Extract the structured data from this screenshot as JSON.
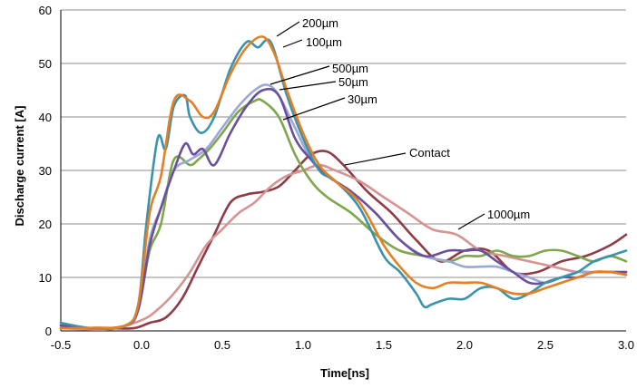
{
  "chart_data": {
    "type": "line",
    "title": "",
    "xlabel": "Time[ns]",
    "ylabel": "Discharge current [A]",
    "xlim": [
      -0.5,
      3.0
    ],
    "ylim": [
      0,
      60
    ],
    "x_ticks": [
      "-0.5",
      "0.0",
      "0.5",
      "1.0",
      "1.5",
      "2.0",
      "2.5",
      "3.0"
    ],
    "y_ticks": [
      "0",
      "10",
      "20",
      "30",
      "40",
      "50",
      "60"
    ],
    "grid": "horizontal",
    "legend": "none",
    "series": [
      {
        "name": "200µm",
        "color": "#e67e22",
        "x": [
          -0.5,
          -0.3,
          -0.1,
          -0.02,
          0.05,
          0.12,
          0.2,
          0.3,
          0.38,
          0.45,
          0.55,
          0.65,
          0.75,
          0.82,
          0.9,
          1.0,
          1.1,
          1.2,
          1.35,
          1.5,
          1.6,
          1.7,
          1.8,
          1.9,
          2.0,
          2.1,
          2.2,
          2.3,
          2.4,
          2.5,
          2.6,
          2.7,
          2.8,
          2.9,
          3.0
        ],
        "y": [
          0.5,
          0.6,
          1.0,
          5,
          22,
          29,
          43,
          43,
          40,
          41,
          48,
          53,
          55,
          52,
          45,
          37,
          31,
          28,
          24,
          16,
          12,
          9,
          8,
          9,
          9,
          9,
          8,
          7,
          7,
          8,
          9,
          10,
          11,
          11,
          10.5
        ]
      },
      {
        "name": "100µm",
        "color": "#3a93ad",
        "x": [
          -0.5,
          -0.3,
          -0.1,
          -0.02,
          0.03,
          0.1,
          0.15,
          0.2,
          0.27,
          0.3,
          0.37,
          0.45,
          0.55,
          0.65,
          0.72,
          0.8,
          0.9,
          1.0,
          1.1,
          1.2,
          1.35,
          1.5,
          1.6,
          1.7,
          1.75,
          1.8,
          1.9,
          2.0,
          2.1,
          2.2,
          2.3,
          2.4,
          2.5,
          2.6,
          2.7,
          2.8,
          2.9,
          3.0
        ],
        "y": [
          1.5,
          0.5,
          1.0,
          5,
          20,
          36,
          34,
          42,
          44,
          40,
          37,
          40,
          49,
          54,
          53,
          54,
          44,
          36,
          30,
          28,
          23,
          14,
          11,
          7,
          4.5,
          5,
          6,
          6,
          8,
          8,
          6,
          7,
          9,
          10,
          11,
          13,
          14,
          15
        ]
      },
      {
        "name": "500µm",
        "color": "#6a4f9c",
        "x": [
          -0.5,
          -0.3,
          -0.1,
          -0.02,
          0.05,
          0.12,
          0.2,
          0.27,
          0.32,
          0.38,
          0.45,
          0.55,
          0.65,
          0.75,
          0.85,
          0.95,
          1.05,
          1.15,
          1.3,
          1.45,
          1.6,
          1.75,
          1.9,
          2.0,
          2.1,
          2.2,
          2.3,
          2.4,
          2.5,
          2.6,
          2.7,
          2.8,
          2.9,
          3.0
        ],
        "y": [
          1.0,
          0.5,
          1.0,
          4,
          16,
          23,
          30,
          35,
          33,
          34,
          31,
          37,
          42,
          45,
          44,
          36,
          32,
          29,
          26,
          22,
          17,
          14,
          15,
          15,
          15,
          13,
          11,
          9,
          9,
          10,
          10,
          11,
          11,
          11
        ]
      },
      {
        "name": "50µm",
        "color": "#9aa8d6",
        "x": [
          -0.5,
          -0.3,
          -0.1,
          -0.02,
          0.05,
          0.12,
          0.2,
          0.3,
          0.4,
          0.5,
          0.6,
          0.7,
          0.78,
          0.85,
          0.95,
          1.05,
          1.15,
          1.3,
          1.45,
          1.6,
          1.75,
          1.9,
          2.0,
          2.1,
          2.2,
          2.3,
          2.4,
          2.5,
          2.6,
          2.7,
          2.8,
          2.9,
          3.0
        ],
        "y": [
          1.0,
          0.5,
          1.0,
          4,
          17,
          23,
          30,
          32,
          34,
          38,
          42,
          45,
          46,
          44,
          38,
          32,
          29,
          26,
          22,
          17,
          14,
          13,
          12,
          12,
          12,
          11,
          10,
          9,
          10,
          11,
          11,
          11,
          10.5
        ]
      },
      {
        "name": "30µm",
        "color": "#7ea64a",
        "x": [
          -0.5,
          -0.3,
          -0.1,
          -0.02,
          0.05,
          0.12,
          0.2,
          0.3,
          0.35,
          0.42,
          0.5,
          0.6,
          0.7,
          0.75,
          0.85,
          0.95,
          1.05,
          1.15,
          1.3,
          1.45,
          1.6,
          1.75,
          1.9,
          2.0,
          2.1,
          2.2,
          2.3,
          2.4,
          2.5,
          2.6,
          2.7,
          2.8,
          2.9,
          3.0
        ],
        "y": [
          1.0,
          0.5,
          1.0,
          4,
          15,
          20,
          32,
          31,
          32,
          34,
          37,
          41,
          43,
          43,
          40,
          33,
          28,
          25,
          22,
          18,
          15,
          14,
          13,
          14,
          14,
          15,
          14,
          14,
          15,
          15,
          14,
          13,
          14,
          13
        ]
      },
      {
        "name": "Contact",
        "color": "#8e3b46",
        "x": [
          -0.5,
          -0.2,
          -0.05,
          0.05,
          0.15,
          0.25,
          0.35,
          0.45,
          0.55,
          0.65,
          0.75,
          0.85,
          0.95,
          1.05,
          1.15,
          1.25,
          1.4,
          1.55,
          1.7,
          1.85,
          2.0,
          2.15,
          2.3,
          2.45,
          2.6,
          2.75,
          2.9,
          3.0
        ],
        "y": [
          0.5,
          0.5,
          0.5,
          1.5,
          2.5,
          6,
          12,
          18,
          24,
          25.5,
          26,
          27,
          30,
          33,
          33.5,
          31,
          26,
          22,
          17,
          13,
          15,
          15,
          11,
          11,
          13,
          14,
          16,
          18
        ]
      },
      {
        "name": "1000µm",
        "color": "#d59391",
        "x": [
          -0.5,
          -0.2,
          0.0,
          0.1,
          0.2,
          0.3,
          0.4,
          0.5,
          0.6,
          0.7,
          0.8,
          0.9,
          1.0,
          1.1,
          1.2,
          1.35,
          1.5,
          1.65,
          1.8,
          1.95,
          2.1,
          2.25,
          2.4,
          2.55,
          2.7,
          2.85,
          3.0
        ],
        "y": [
          0.5,
          0.3,
          2,
          4,
          7,
          11,
          16,
          19,
          22,
          24,
          27,
          29,
          30,
          31,
          30,
          28,
          25,
          22,
          19,
          18,
          15,
          14,
          13,
          12,
          11,
          11,
          11
        ]
      }
    ],
    "annotations": [
      {
        "label": "200µm"
      },
      {
        "label": "100µm"
      },
      {
        "label": "500µm"
      },
      {
        "label": "50µm"
      },
      {
        "label": "30µm"
      },
      {
        "label": "Contact"
      },
      {
        "label": "1000µm"
      }
    ]
  }
}
